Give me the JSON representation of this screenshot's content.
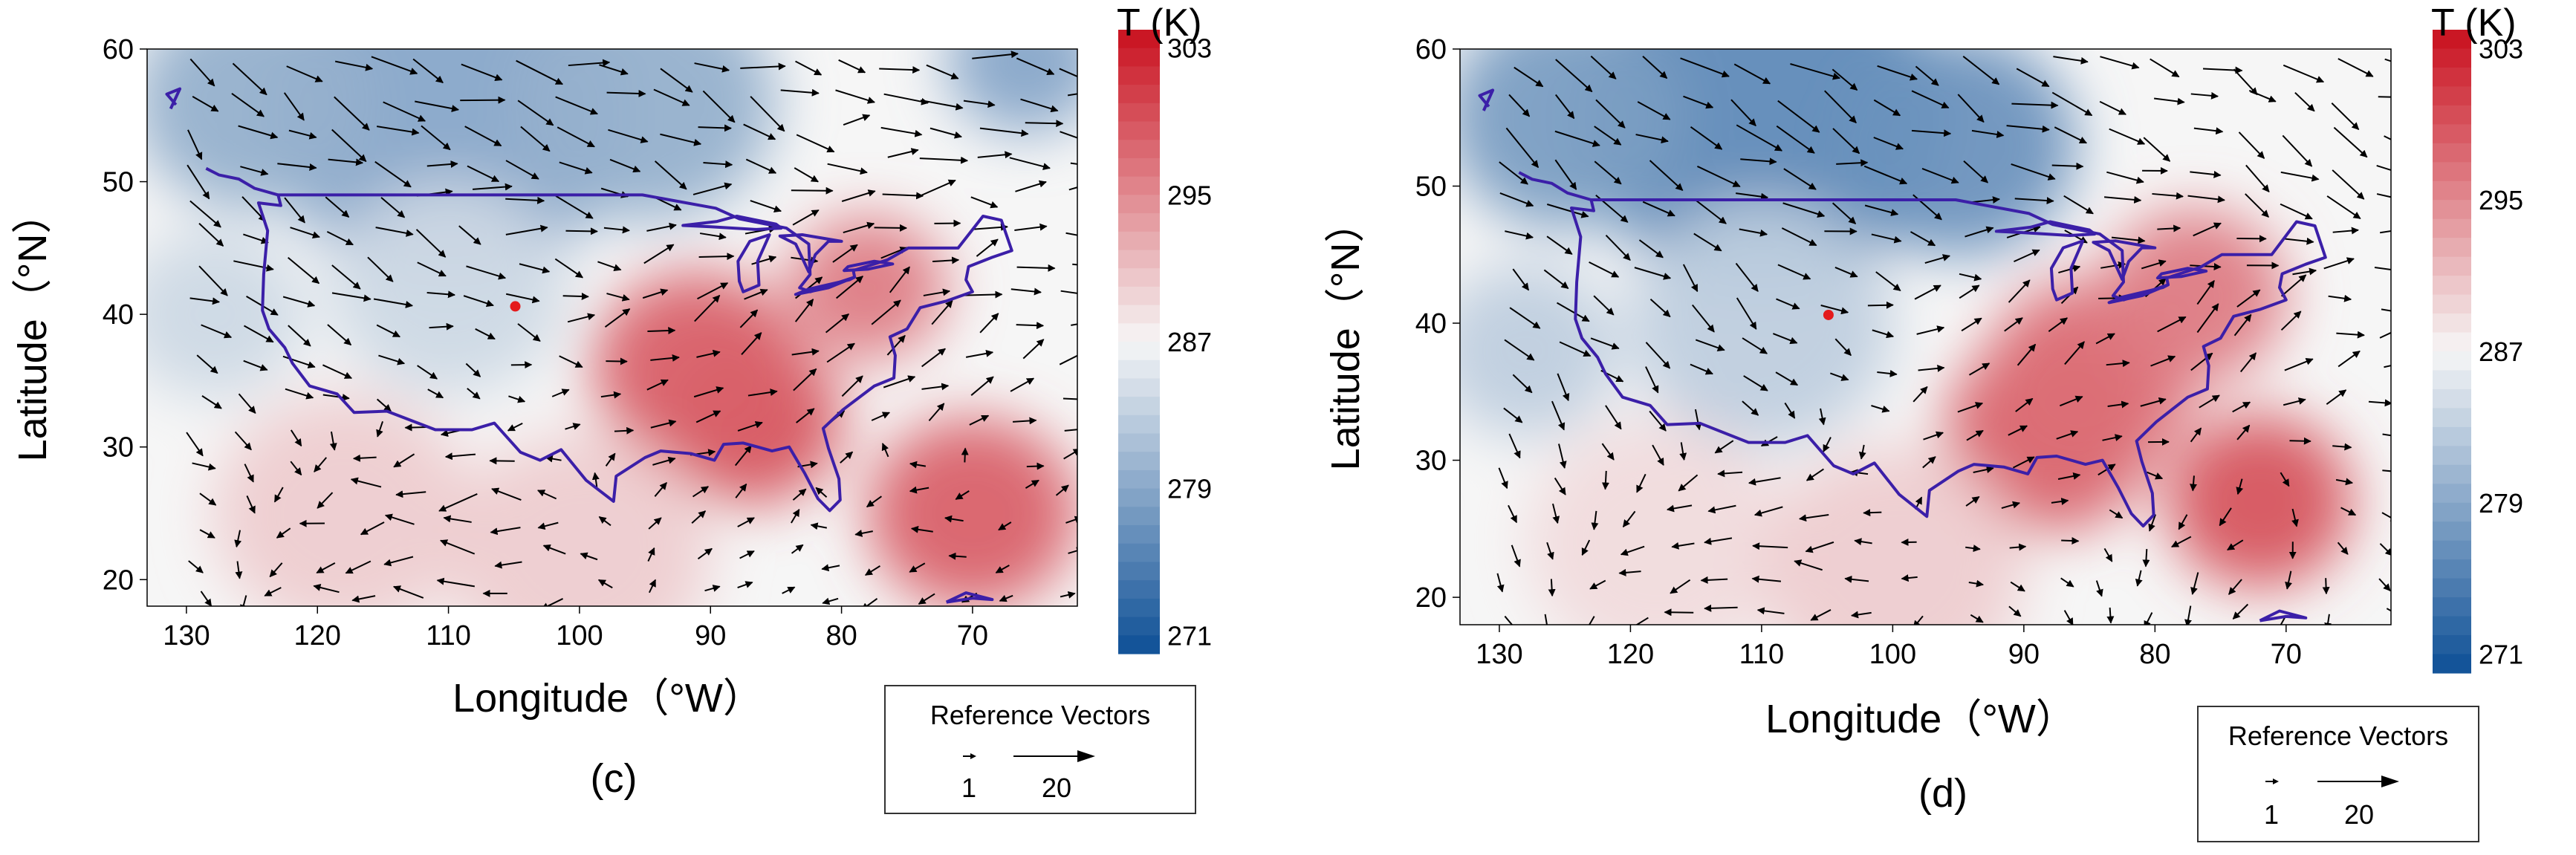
{
  "figure": {
    "reference_vectors": {
      "title": "Reference Vectors",
      "small": "1",
      "large": "20"
    }
  },
  "chart_data": [
    {
      "type": "heatmap",
      "subtype": "wind vector field over temperature contour map",
      "panel_label": "(c)",
      "title": "",
      "xlabel": "Longitude（°W）",
      "ylabel": "Latitude（°N）",
      "xlim": [
        133,
        62
      ],
      "ylim": [
        18,
        60
      ],
      "xticks": [
        "130",
        "120",
        "110",
        "100",
        "90",
        "80",
        "70"
      ],
      "xtick_values": [
        130,
        120,
        110,
        100,
        90,
        80,
        70
      ],
      "yticks": [
        "20",
        "30",
        "40",
        "50",
        "60"
      ],
      "ytick_values": [
        20,
        30,
        40,
        50,
        60
      ],
      "colorbar": {
        "title": "T (K)",
        "ticks": [
          "303",
          "295",
          "287",
          "279",
          "271"
        ],
        "tick_values": [
          303,
          295,
          287,
          279,
          271
        ],
        "range": [
          270,
          304
        ],
        "low_color": "#0d4f96",
        "mid_color": "#f6f6f6",
        "high_color": "#c9101e"
      },
      "marker": {
        "lon": 104.9,
        "lat": 40.6,
        "color": "#e41a1c"
      },
      "temperature_features": [
        {
          "lon": 110,
          "lat": 55,
          "temp_K": 279,
          "radius_deg": 14
        },
        {
          "lon": 125,
          "lat": 56,
          "temp_K": 280,
          "radius_deg": 9
        },
        {
          "lon": 95,
          "lat": 56,
          "temp_K": 280,
          "radius_deg": 10
        },
        {
          "lon": 66,
          "lat": 59,
          "temp_K": 279,
          "radius_deg": 6
        },
        {
          "lon": 110,
          "lat": 42,
          "temp_K": 284,
          "radius_deg": 9
        },
        {
          "lon": 128,
          "lat": 40,
          "temp_K": 284,
          "radius_deg": 7
        },
        {
          "lon": 87,
          "lat": 32,
          "temp_K": 299,
          "radius_deg": 7
        },
        {
          "lon": 91,
          "lat": 36,
          "temp_K": 298,
          "radius_deg": 8
        },
        {
          "lon": 78,
          "lat": 42,
          "temp_K": 296,
          "radius_deg": 6
        },
        {
          "lon": 70,
          "lat": 25,
          "temp_K": 298,
          "radius_deg": 8
        },
        {
          "lon": 118,
          "lat": 25,
          "temp_K": 290,
          "radius_deg": 10
        },
        {
          "lon": 100,
          "lat": 22,
          "temp_K": 290,
          "radius_deg": 10
        }
      ],
      "wind_flow": [
        {
          "lon": 130,
          "lat": 55,
          "u": 4,
          "v": -4
        },
        {
          "lon": 110,
          "lat": 56,
          "u": 8,
          "v": -2
        },
        {
          "lon": 90,
          "lat": 56,
          "u": 6,
          "v": -3
        },
        {
          "lon": 70,
          "lat": 55,
          "u": 7,
          "v": 0
        },
        {
          "lon": 115,
          "lat": 42,
          "u": 5,
          "v": -2
        },
        {
          "lon": 90,
          "lat": 38,
          "u": 3,
          "v": 3
        },
        {
          "lon": 75,
          "lat": 38,
          "u": 4,
          "v": 3
        },
        {
          "lon": 110,
          "lat": 25,
          "u": -7,
          "v": 0
        },
        {
          "lon": 75,
          "lat": 25,
          "u": -3,
          "v": -1
        }
      ]
    },
    {
      "type": "heatmap",
      "subtype": "wind vector field over temperature contour map",
      "panel_label": "(d)",
      "title": "",
      "xlabel": "Longitude（°W）",
      "ylabel": "Latitude（°N）",
      "xlim": [
        133,
        62
      ],
      "ylim": [
        18,
        60
      ],
      "xticks": [
        "130",
        "120",
        "110",
        "100",
        "90",
        "80",
        "70"
      ],
      "xtick_values": [
        130,
        120,
        110,
        100,
        90,
        80,
        70
      ],
      "yticks": [
        "20",
        "30",
        "40",
        "50",
        "60"
      ],
      "ytick_values": [
        20,
        30,
        40,
        50,
        60
      ],
      "colorbar": {
        "title": "T (K)",
        "ticks": [
          "303",
          "295",
          "287",
          "279",
          "271"
        ],
        "tick_values": [
          303,
          295,
          287,
          279,
          271
        ],
        "range": [
          270,
          304
        ],
        "low_color": "#0d4f96",
        "mid_color": "#f6f6f6",
        "high_color": "#c9101e"
      },
      "marker": {
        "lon": 104.9,
        "lat": 40.6,
        "color": "#e41a1c"
      },
      "temperature_features": [
        {
          "lon": 110,
          "lat": 55,
          "temp_K": 276,
          "radius_deg": 14
        },
        {
          "lon": 125,
          "lat": 55,
          "temp_K": 278,
          "radius_deg": 9
        },
        {
          "lon": 95,
          "lat": 53,
          "temp_K": 277,
          "radius_deg": 9
        },
        {
          "lon": 110,
          "lat": 40,
          "temp_K": 283,
          "radius_deg": 10
        },
        {
          "lon": 128,
          "lat": 38,
          "temp_K": 283,
          "radius_deg": 7
        },
        {
          "lon": 88,
          "lat": 32,
          "temp_K": 298,
          "radius_deg": 8
        },
        {
          "lon": 85,
          "lat": 36,
          "temp_K": 297,
          "radius_deg": 8
        },
        {
          "lon": 77,
          "lat": 42,
          "temp_K": 296,
          "radius_deg": 7
        },
        {
          "lon": 72,
          "lat": 27,
          "temp_K": 299,
          "radius_deg": 7
        },
        {
          "lon": 118,
          "lat": 24,
          "temp_K": 289,
          "radius_deg": 10
        },
        {
          "lon": 100,
          "lat": 22,
          "temp_K": 290,
          "radius_deg": 10
        }
      ],
      "wind_flow": [
        {
          "lon": 130,
          "lat": 55,
          "u": 5,
          "v": -4
        },
        {
          "lon": 110,
          "lat": 56,
          "u": 8,
          "v": -3
        },
        {
          "lon": 90,
          "lat": 55,
          "u": 6,
          "v": -3
        },
        {
          "lon": 70,
          "lat": 52,
          "u": 5,
          "v": -3
        },
        {
          "lon": 115,
          "lat": 40,
          "u": 3,
          "v": -3
        },
        {
          "lon": 92,
          "lat": 38,
          "u": 2,
          "v": 3
        },
        {
          "lon": 75,
          "lat": 38,
          "u": 3,
          "v": 4
        },
        {
          "lon": 110,
          "lat": 25,
          "u": -6,
          "v": 0
        },
        {
          "lon": 75,
          "lat": 25,
          "u": -2,
          "v": -2
        }
      ]
    }
  ]
}
